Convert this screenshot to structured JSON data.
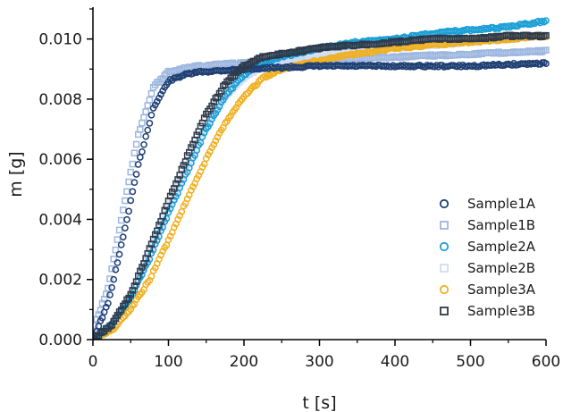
{
  "chart_data": {
    "type": "scatter",
    "xlabel": "t [s]",
    "ylabel": "m [g]",
    "xlim": [
      0,
      600
    ],
    "ylim": [
      0,
      0.011
    ],
    "x_ticks": [
      "0",
      "100",
      "200",
      "300",
      "400",
      "500",
      "600"
    ],
    "y_ticks": [
      "0.000",
      "0.002",
      "0.004",
      "0.006",
      "0.008",
      "0.010"
    ],
    "grid": false,
    "legend_position": "bottom-right",
    "series": [
      {
        "name": "Sample1A",
        "marker": "circle",
        "color": "#1f3f73",
        "x": [
          0,
          20,
          40,
          60,
          80,
          100,
          120,
          140,
          200,
          300,
          400,
          500,
          600
        ],
        "y": [
          0.0,
          0.0012,
          0.0034,
          0.0058,
          0.0077,
          0.0086,
          0.0088,
          0.0089,
          0.009,
          0.0091,
          0.0091,
          0.0091,
          0.0092
        ]
      },
      {
        "name": "Sample1B",
        "marker": "square",
        "color": "#9db7e0",
        "x": [
          0,
          20,
          40,
          60,
          80,
          100,
          120,
          140,
          200,
          300,
          400,
          500,
          600
        ],
        "y": [
          0.0003,
          0.0017,
          0.0043,
          0.0068,
          0.0084,
          0.0089,
          0.009,
          0.0091,
          0.0092,
          0.0093,
          0.0094,
          0.0095,
          0.0096
        ]
      },
      {
        "name": "Sample2A",
        "marker": "circle",
        "color": "#1a9fd6",
        "x": [
          0,
          25,
          50,
          75,
          100,
          125,
          150,
          175,
          200,
          225,
          250,
          300,
          350,
          400,
          450,
          500,
          550,
          600
        ],
        "y": [
          0.0,
          0.0005,
          0.0014,
          0.0027,
          0.0042,
          0.0056,
          0.007,
          0.0081,
          0.0088,
          0.0092,
          0.0094,
          0.0097,
          0.0099,
          0.01,
          0.0102,
          0.0103,
          0.0104,
          0.0106
        ]
      },
      {
        "name": "Sample2B",
        "marker": "square",
        "color": "#cfdcf3",
        "x": [
          0,
          25,
          50,
          75,
          100,
          125,
          150,
          175,
          200,
          225,
          250,
          300,
          350,
          400,
          450,
          500,
          550,
          600
        ],
        "y": [
          0.0,
          0.0005,
          0.0015,
          0.0029,
          0.0044,
          0.0058,
          0.0071,
          0.0081,
          0.0087,
          0.0091,
          0.0093,
          0.0095,
          0.0096,
          0.0097,
          0.0098,
          0.0099,
          0.01,
          0.0101
        ]
      },
      {
        "name": "Sample3A",
        "marker": "circle",
        "color": "#f0b020",
        "x": [
          0,
          25,
          50,
          75,
          100,
          125,
          150,
          175,
          200,
          225,
          250,
          300,
          350,
          400,
          450,
          500,
          550,
          600
        ],
        "y": [
          0.0,
          0.0003,
          0.001,
          0.002,
          0.0033,
          0.0047,
          0.006,
          0.0072,
          0.0081,
          0.0087,
          0.009,
          0.0093,
          0.0095,
          0.0097,
          0.0098,
          0.0099,
          0.01,
          0.0101
        ]
      },
      {
        "name": "Sample3B",
        "marker": "square",
        "color": "#2e3a4a",
        "x": [
          0,
          25,
          50,
          75,
          100,
          125,
          150,
          175,
          200,
          225,
          250,
          300,
          350,
          400,
          450,
          500,
          550,
          600
        ],
        "y": [
          0.0,
          0.0005,
          0.0015,
          0.003,
          0.0046,
          0.0061,
          0.0075,
          0.0085,
          0.0091,
          0.0094,
          0.0095,
          0.0097,
          0.0098,
          0.0099,
          0.01,
          0.01,
          0.0101,
          0.0101
        ]
      }
    ]
  }
}
